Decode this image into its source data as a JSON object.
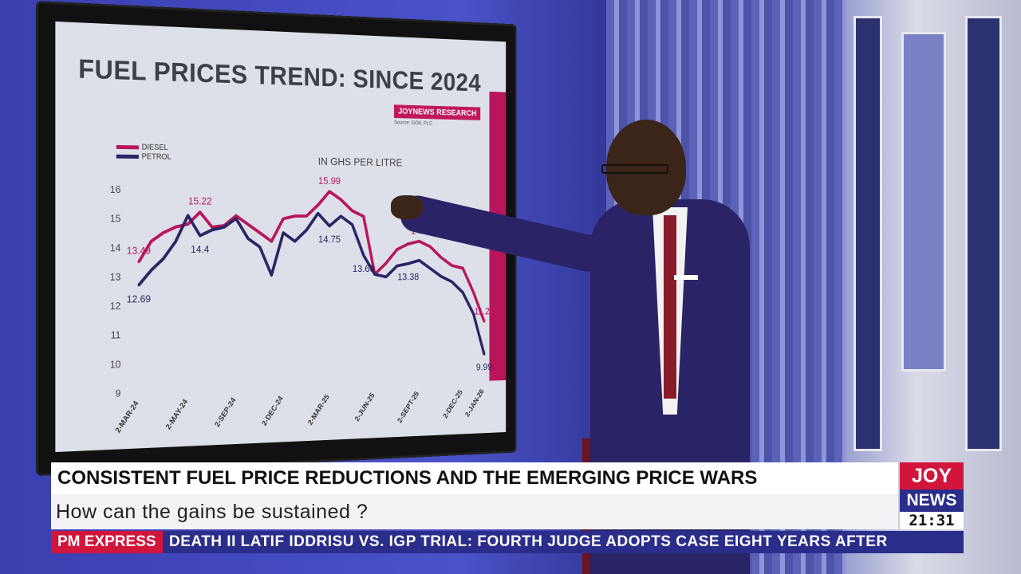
{
  "chart_data": {
    "type": "line",
    "title": "FUEL PRICES TREND: SINCE 2024",
    "unit_label": "IN GHS PER LITRE",
    "badge": "JOYNEWS RESEARCH",
    "source": "Source: GOIL PLC",
    "ylim": [
      9,
      16
    ],
    "yticks": [
      9,
      10,
      11,
      12,
      13,
      14,
      15,
      16
    ],
    "x_tick_labels": [
      "2-MAR-24",
      "2-MAY-24",
      "2-SEP-24",
      "2-DEC-24",
      "2-MAR-25",
      "2-JUN-25",
      "2-SEPT-25",
      "2-DEC-25",
      "2-JAN-26"
    ],
    "x_tick_index": [
      0,
      4,
      8,
      12,
      16,
      20,
      24,
      28,
      30
    ],
    "series": [
      {
        "name": "DIESEL",
        "color": "#b8155a",
        "values": [
          13.49,
          14.2,
          14.5,
          14.7,
          14.8,
          15.22,
          14.7,
          14.75,
          15.1,
          14.8,
          14.5,
          14.2,
          15.0,
          15.1,
          15.1,
          15.5,
          15.99,
          15.7,
          15.3,
          15.1,
          13.0,
          13.4,
          13.9,
          14.1,
          14.2,
          14.0,
          13.6,
          13.3,
          13.2,
          12.3,
          11.21
        ]
      },
      {
        "name": "PETROL",
        "color": "#2a2466",
        "values": [
          12.69,
          13.2,
          13.6,
          14.2,
          15.1,
          14.4,
          14.6,
          14.7,
          15.0,
          14.3,
          14.0,
          13.0,
          14.5,
          14.2,
          14.6,
          15.2,
          14.75,
          15.1,
          14.8,
          13.69,
          13.0,
          12.9,
          13.3,
          13.38,
          13.5,
          13.2,
          12.9,
          12.7,
          12.3,
          11.5,
          9.99
        ]
      }
    ],
    "annotations": [
      {
        "series": 0,
        "index": 0,
        "text": "13.49"
      },
      {
        "series": 0,
        "index": 5,
        "text": "15.22"
      },
      {
        "series": 0,
        "index": 16,
        "text": "15.99"
      },
      {
        "series": 0,
        "index": 24,
        "text": "14.2"
      },
      {
        "series": 0,
        "index": 30,
        "text": "11.21"
      },
      {
        "series": 1,
        "index": 0,
        "text": "12.69"
      },
      {
        "series": 1,
        "index": 5,
        "text": "14.4"
      },
      {
        "series": 1,
        "index": 16,
        "text": "14.75"
      },
      {
        "series": 1,
        "index": 19,
        "text": "13.69"
      },
      {
        "series": 1,
        "index": 23,
        "text": "13.38"
      },
      {
        "series": 1,
        "index": 30,
        "text": "9.99"
      }
    ],
    "legend_position": "top-left",
    "grid": false
  },
  "lower_third": {
    "headline": "CONSISTENT FUEL PRICE REDUCTIONS AND THE EMERGING PRICE WARS",
    "subhead": "How can the gains be sustained ?"
  },
  "ticker": {
    "tag": "PM EXPRESS",
    "text": "DEATH    II    LATIF IDDRISU VS. IGP TRIAL: FOURTH JUDGE ADOPTS CASE EIGHT YEARS AFTER"
  },
  "logo": {
    "joy": "JOY",
    "news": "NEWS",
    "time": "21:31"
  }
}
